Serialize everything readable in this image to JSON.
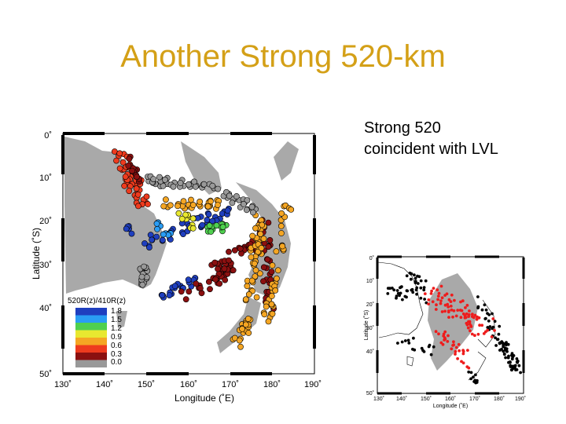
{
  "slide": {
    "title": "Another Strong 520-km",
    "caption_lines": [
      "Strong 520",
      "coincident with LVL"
    ]
  },
  "main_map": {
    "xlabel": "Longitude (˚E)",
    "ylabel": "Latitude (˚S)",
    "x_ticks": [
      "130˚",
      "140˚",
      "150˚",
      "160˚",
      "170˚",
      "180˚",
      "190˚"
    ],
    "y_ticks": [
      "0˚",
      "10˚",
      "20˚",
      "30˚",
      "40˚",
      "50˚"
    ],
    "legend": {
      "title": "520R(z)/410R(z)",
      "labels": [
        "1.8",
        "1.5",
        "1.2",
        "0.9",
        "0.6",
        "0.3",
        "0.0"
      ],
      "colors": [
        "#1f3fbf",
        "#2a9df4",
        "#4fd04f",
        "#e8e830",
        "#f5a623",
        "#ee3b1e",
        "#8b1010",
        "#999999"
      ]
    },
    "colors": {
      "land": "#a9a9a9",
      "ocean": "#ffffff"
    }
  },
  "inset_map": {
    "xlabel": "Longitude (˚E)",
    "ylabel": "Latitude (˚S)",
    "x_ticks": [
      "130˚",
      "140˚",
      "150˚",
      "160˚",
      "170˚",
      "180˚",
      "190˚"
    ],
    "y_ticks": [
      "0˚",
      "10˚",
      "20˚",
      "30˚",
      "40˚",
      "50˚"
    ],
    "colors": {
      "lvl_region": "#a9a9a9",
      "strong": "#ee1c1c",
      "other": "#000000"
    }
  }
}
